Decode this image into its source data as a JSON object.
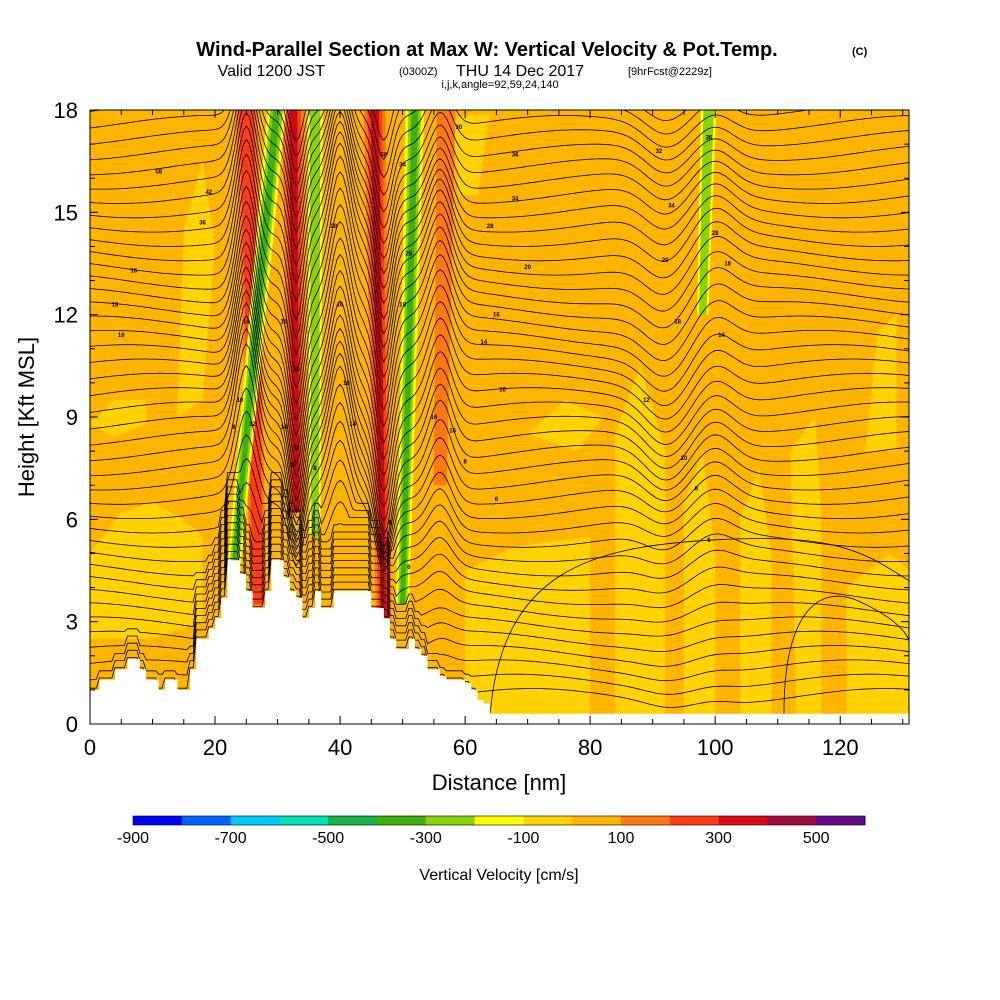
{
  "title": {
    "main": "Wind-Parallel Section at Max W: Vertical Velocity & Pot.Temp.",
    "main_mark": "(C)",
    "valid_a": "Valid 1200 JST",
    "valid_b": "(0300Z)",
    "valid_c": "THU 14 Dec 2017",
    "valid_d": "[9hrFcst@2229z]",
    "params": "i,j,k,angle=92,59,24,140"
  },
  "chart_data": {
    "type": "heatmap",
    "xlabel": "Distance [nm]",
    "ylabel": "Height [Kft MSL]",
    "xlim": [
      0,
      131
    ],
    "ylim": [
      0,
      18
    ],
    "xticks": [
      0,
      20,
      40,
      60,
      80,
      100,
      120
    ],
    "yticks": [
      0,
      3,
      6,
      9,
      12,
      15,
      18
    ],
    "colorbar": {
      "title": "Vertical Velocity [cm/s]",
      "labels": [
        "-900",
        "-700",
        "-500",
        "-300",
        "-100",
        "100",
        "300",
        "500"
      ],
      "colors": [
        "#0000ff",
        "#0064ff",
        "#00c8ff",
        "#00e0b0",
        "#18b448",
        "#40b010",
        "#8cd20a",
        "#ffff00",
        "#ffd200",
        "#ffb400",
        "#ff7814",
        "#ff3c14",
        "#dc0a14",
        "#a00a3c",
        "#640a8c"
      ]
    },
    "fill_colors": {
      "base": "#ffb400",
      "weak_down": "#ffd200",
      "down_1": "#ffff00",
      "down_2": "#8cd20a",
      "down_3": "#40b010",
      "up_1": "#ff7814",
      "up_2": "#ff3c14",
      "up_3": "#c80a14"
    },
    "upward_bands": [
      {
        "x_bottom": 27,
        "y_bottom": 3.5,
        "x_top": 25,
        "y_top": 18,
        "width": 3.5,
        "peak": 300
      },
      {
        "x_bottom": 33,
        "y_bottom": 6.2,
        "x_top": 32.5,
        "y_top": 18,
        "width": 3.5,
        "peak": 500
      },
      {
        "x_bottom": 47,
        "y_bottom": 3.0,
        "x_top": 45.5,
        "y_top": 18,
        "width": 3.5,
        "peak": 500
      },
      {
        "x_bottom": 56,
        "y_bottom": 7.0,
        "x_top": 57,
        "y_top": 18,
        "width": 3.0,
        "peak": 100
      }
    ],
    "downward_bands": [
      {
        "x_bottom": 23,
        "y_bottom": 4.5,
        "x_top": 30,
        "y_top": 18,
        "width": 3.0,
        "peak": -300
      },
      {
        "x_bottom": 36,
        "y_bottom": 5.5,
        "x_top": 36,
        "y_top": 18,
        "width": 2.5,
        "peak": -200
      },
      {
        "x_bottom": 50,
        "y_bottom": 3.5,
        "x_top": 52,
        "y_top": 18,
        "width": 3.0,
        "peak": -300
      },
      {
        "x_bottom": 98,
        "y_bottom": 12.0,
        "x_top": 99,
        "y_top": 18,
        "width": 2.5,
        "peak": -150
      }
    ],
    "terrain": {
      "x": [
        0,
        1,
        1.5,
        4,
        6,
        8,
        9,
        11,
        12,
        14,
        16,
        17,
        18,
        19,
        20,
        21,
        22,
        23,
        24,
        25,
        26,
        27,
        28,
        29,
        30,
        31,
        32,
        33,
        34,
        35,
        36,
        37,
        38,
        39,
        40,
        41,
        42,
        43,
        44,
        45,
        46,
        47,
        48,
        49,
        50,
        51,
        52,
        53,
        54,
        55,
        56,
        57,
        58,
        59,
        60,
        61,
        62,
        63,
        64,
        131
      ],
      "y": [
        1.0,
        1.0,
        1.3,
        1.6,
        1.9,
        1.6,
        1.3,
        1.0,
        1.3,
        1.0,
        1.6,
        2.5,
        2.5,
        2.8,
        3.1,
        3.7,
        4.8,
        4.8,
        4.4,
        3.9,
        3.4,
        3.4,
        3.9,
        4.8,
        4.8,
        4.3,
        3.9,
        3.7,
        3.1,
        3.4,
        3.9,
        3.4,
        3.4,
        3.9,
        3.9,
        3.9,
        3.9,
        3.9,
        3.9,
        3.4,
        3.4,
        3.1,
        2.5,
        2.2,
        2.2,
        2.5,
        2.2,
        2.0,
        1.6,
        1.6,
        1.4,
        1.3,
        1.3,
        1.3,
        1.2,
        1.0,
        0.7,
        0.6,
        0.3,
        0.3
      ]
    },
    "contour_labels": [
      {
        "x": 11,
        "y": 16.2,
        "text": "58"
      },
      {
        "x": 19,
        "y": 15.6,
        "text": "42"
      },
      {
        "x": 18,
        "y": 14.7,
        "text": "36"
      },
      {
        "x": 7,
        "y": 13.3,
        "text": "16"
      },
      {
        "x": 4,
        "y": 12.3,
        "text": "18"
      },
      {
        "x": 5,
        "y": 11.4,
        "text": "16"
      },
      {
        "x": 25,
        "y": 11.8,
        "text": "14"
      },
      {
        "x": 31,
        "y": 11.8,
        "text": "16"
      },
      {
        "x": 33,
        "y": 10.4,
        "text": "18"
      },
      {
        "x": 39,
        "y": 14.6,
        "text": "28"
      },
      {
        "x": 40,
        "y": 12.3,
        "text": "16"
      },
      {
        "x": 41,
        "y": 10.0,
        "text": "16"
      },
      {
        "x": 24,
        "y": 9.5,
        "text": "10"
      },
      {
        "x": 23,
        "y": 8.7,
        "text": "8"
      },
      {
        "x": 26,
        "y": 8.8,
        "text": "12"
      },
      {
        "x": 31,
        "y": 8.7,
        "text": "14"
      },
      {
        "x": 33,
        "y": 8.1,
        "text": "12"
      },
      {
        "x": 32.5,
        "y": 7.6,
        "text": "10"
      },
      {
        "x": 36,
        "y": 7.5,
        "text": "8"
      },
      {
        "x": 22,
        "y": 6.5,
        "text": "6"
      },
      {
        "x": 42,
        "y": 8.8,
        "text": "14"
      },
      {
        "x": 47,
        "y": 16.7,
        "text": "38"
      },
      {
        "x": 50,
        "y": 16.4,
        "text": "34"
      },
      {
        "x": 51,
        "y": 13.8,
        "text": "28"
      },
      {
        "x": 50,
        "y": 12.3,
        "text": "18"
      },
      {
        "x": 55,
        "y": 9.0,
        "text": "16"
      },
      {
        "x": 58,
        "y": 8.6,
        "text": "16"
      },
      {
        "x": 48,
        "y": 5.9,
        "text": "8"
      },
      {
        "x": 51,
        "y": 4.6,
        "text": "6"
      },
      {
        "x": 60,
        "y": 7.7,
        "text": "8"
      },
      {
        "x": 65,
        "y": 6.6,
        "text": "6"
      },
      {
        "x": 63,
        "y": 11.2,
        "text": "14"
      },
      {
        "x": 65,
        "y": 12.0,
        "text": "16"
      },
      {
        "x": 66,
        "y": 9.8,
        "text": "10"
      },
      {
        "x": 59,
        "y": 17.5,
        "text": "30"
      },
      {
        "x": 68,
        "y": 16.7,
        "text": "36"
      },
      {
        "x": 68,
        "y": 15.4,
        "text": "34"
      },
      {
        "x": 64,
        "y": 14.6,
        "text": "28"
      },
      {
        "x": 70,
        "y": 13.4,
        "text": "20"
      },
      {
        "x": 91,
        "y": 16.8,
        "text": "32"
      },
      {
        "x": 99,
        "y": 17.2,
        "text": "36"
      },
      {
        "x": 93,
        "y": 15.2,
        "text": "34"
      },
      {
        "x": 100,
        "y": 14.4,
        "text": "28"
      },
      {
        "x": 92,
        "y": 13.6,
        "text": "20"
      },
      {
        "x": 102,
        "y": 13.5,
        "text": "18"
      },
      {
        "x": 94,
        "y": 11.8,
        "text": "18"
      },
      {
        "x": 101,
        "y": 11.4,
        "text": "14"
      },
      {
        "x": 89,
        "y": 9.5,
        "text": "12"
      },
      {
        "x": 95,
        "y": 7.8,
        "text": "10"
      },
      {
        "x": 97,
        "y": 6.9,
        "text": "8"
      },
      {
        "x": 99,
        "y": 5.4,
        "text": "6"
      }
    ]
  }
}
